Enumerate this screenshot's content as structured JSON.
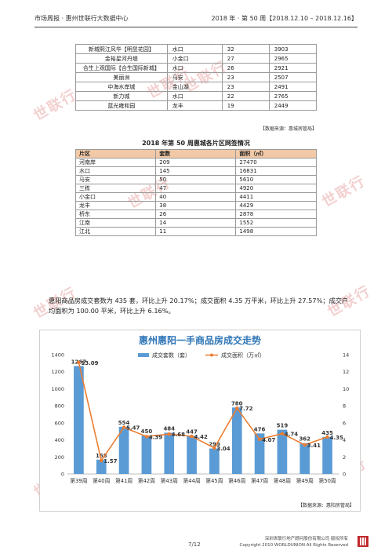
{
  "header": {
    "left": "市场周报 · 惠州世联行大数据中心",
    "right": "2018 年 · 第 50 周【2018.12.10 – 2018.12.16】"
  },
  "table1": {
    "rows": [
      [
        "新城熙江风华【明昱花园】",
        "水口",
        "32",
        "3903"
      ],
      [
        "金裕星河丹堤",
        "小金口",
        "27",
        "2965"
      ],
      [
        "合生上观国际【合生国际新城】",
        "水口",
        "26",
        "2921"
      ],
      [
        "美丽洲",
        "马安",
        "23",
        "2507"
      ],
      [
        "中海水岸城",
        "金山湖",
        "23",
        "2491"
      ],
      [
        "新力城",
        "水口",
        "22",
        "2765"
      ],
      [
        "蓝光雍和园",
        "龙丰",
        "19",
        "2449"
      ]
    ],
    "source": "【数据来源：惠城房管局】"
  },
  "table2": {
    "title": "2018 年第 50 周惠城各片区网签情况",
    "headers": [
      "片区",
      "套数",
      "面积（㎡）"
    ],
    "rows": [
      [
        "河南岸",
        "209",
        "27470"
      ],
      [
        "水口",
        "145",
        "16831"
      ],
      [
        "马安",
        "50",
        "5610"
      ],
      [
        "三栋",
        "47",
        "4920"
      ],
      [
        "小金口",
        "40",
        "4411"
      ],
      [
        "龙丰",
        "38",
        "4429"
      ],
      [
        "桥东",
        "26",
        "2878"
      ],
      [
        "江南",
        "14",
        "1552"
      ],
      [
        "江北",
        "11",
        "1498"
      ]
    ]
  },
  "paragraph": "惠阳商品房成交套数为 435 套，环比上升 20.17%；成交面积 4.35 万平米，环比上升 27.57%；成交户均面积为 100.00 平米，环比上升 6.16%。",
  "chart_data": {
    "type": "bar",
    "title": "惠州惠阳一手商品房成交走势",
    "categories": [
      "第39周",
      "第40周",
      "第41周",
      "第42周",
      "第43周",
      "第44周",
      "第45周",
      "第46周",
      "第47周",
      "第48周",
      "第49周",
      "第50周"
    ],
    "series": [
      {
        "name": "成交套数（套）",
        "type": "bar",
        "axis": "left",
        "color": "#5b9bd5",
        "values": [
          1267,
          168,
          554,
          450,
          484,
          447,
          299,
          780,
          476,
          519,
          362,
          435
        ]
      },
      {
        "name": "成交面积（万㎡）",
        "type": "line",
        "axis": "right",
        "color": "#ed7d31",
        "values": [
          13.09,
          1.57,
          5.47,
          4.39,
          4.68,
          4.42,
          3.04,
          7.72,
          4.07,
          4.74,
          3.41,
          4.35
        ]
      }
    ],
    "ylim_left": [
      0,
      1400
    ],
    "ylim_right": [
      0,
      14
    ],
    "yticks_left": [
      0,
      200,
      400,
      600,
      800,
      1000,
      1200,
      1400
    ],
    "yticks_right": [
      0,
      2,
      4,
      6,
      8,
      10,
      12,
      14
    ],
    "bar_labels": [
      "1267",
      "168",
      "554",
      "450",
      "484",
      "447",
      "299",
      "780",
      "476",
      "519",
      "362",
      "435"
    ],
    "line_labels": [
      "13.09",
      "1.57",
      "5.47",
      "4.39",
      "4.68",
      "4.42",
      "3.04",
      "7.72",
      "4.07",
      "4.74",
      "3.41",
      "4.35"
    ],
    "legend_position": "top",
    "grid": false,
    "source": "【数据来源：惠阳房管局】"
  },
  "footer": {
    "page": "7/12",
    "company_line1": "深圳世联行地产顾问股份有限公司  版权所有",
    "company_line2": "Copyright 2010 WORLDUNION All Rights Reserved"
  },
  "watermark": "世联行"
}
